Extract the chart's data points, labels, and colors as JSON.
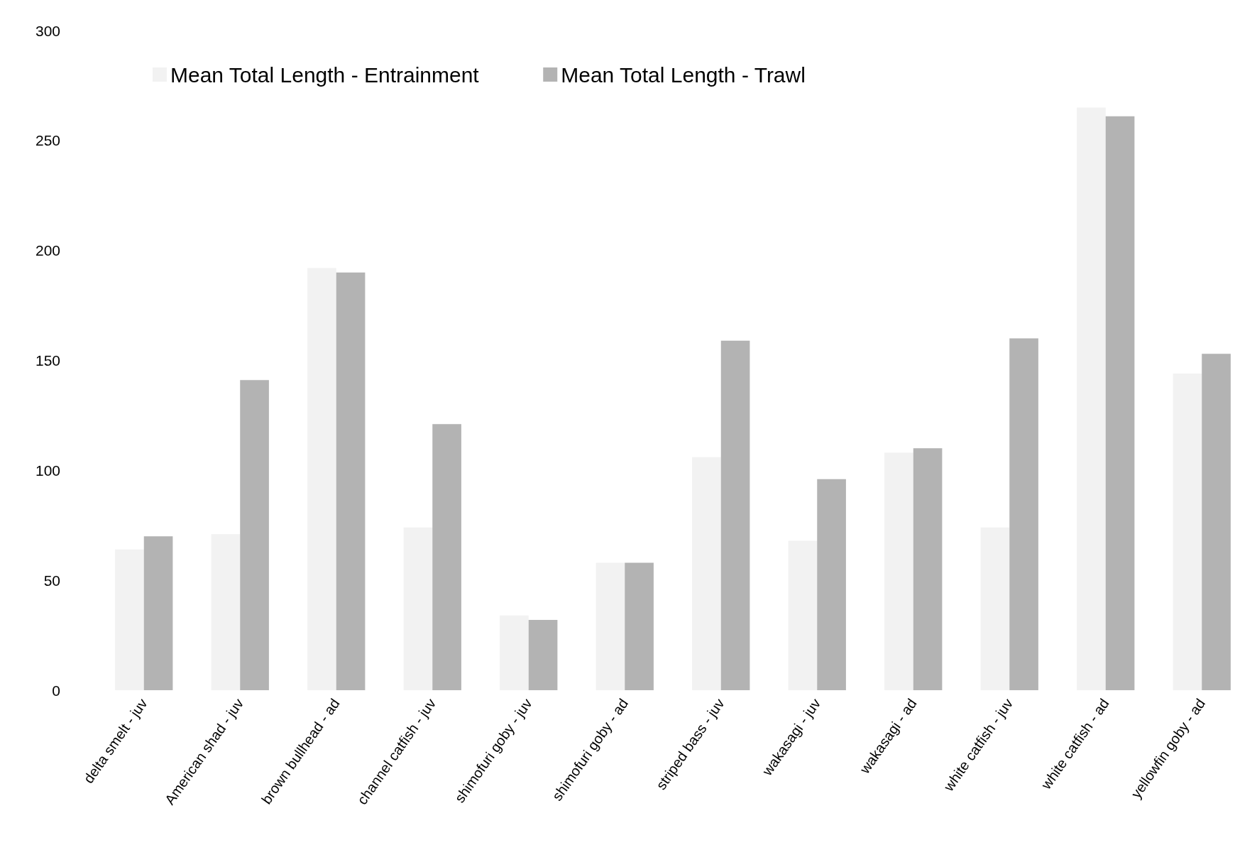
{
  "chart_data": {
    "type": "bar",
    "categories": [
      "delta smelt - juv",
      "American shad - juv",
      "brown bullhead - ad",
      "channel catfish - juv",
      "shimofuri goby - juv",
      "shimofuri goby - ad",
      "striped bass - juv",
      "wakasagi - juv",
      "wakasagi - ad",
      "white catfish - juv",
      "white catfish - ad",
      "yellowfin goby - ad"
    ],
    "series": [
      {
        "name": "Mean Total Length - Entrainment",
        "color": "#f2f2f2",
        "values": [
          64,
          71,
          192,
          74,
          34,
          58,
          106,
          68,
          108,
          74,
          265,
          144
        ]
      },
      {
        "name": "Mean Total Length - Trawl",
        "color": "#b3b3b3",
        "values": [
          70,
          141,
          190,
          121,
          32,
          58,
          159,
          96,
          110,
          160,
          261,
          153
        ]
      }
    ],
    "ylim": [
      0,
      300
    ],
    "yticks": [
      0,
      50,
      100,
      150,
      200,
      250,
      300
    ],
    "grid": false,
    "legend": "top"
  }
}
